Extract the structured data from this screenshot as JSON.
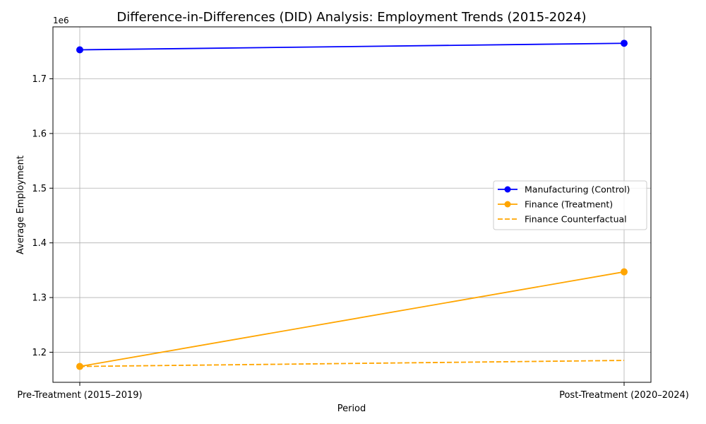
{
  "chart_data": {
    "type": "line",
    "title": "Difference-in-Differences (DID) Analysis: Employment Trends (2015-2024)",
    "xlabel": "Period",
    "ylabel": "Average Employment",
    "offset_label": "1e6",
    "categories": [
      "Pre-Treatment (2015–2019)",
      "Post-Treatment (2020–2024)"
    ],
    "ylim": [
      1145000,
      1795000
    ],
    "yticks": [
      1200000,
      1300000,
      1400000,
      1500000,
      1600000,
      1700000
    ],
    "ytick_labels": [
      "1.2",
      "1.3",
      "1.4",
      "1.5",
      "1.6",
      "1.7"
    ],
    "grid": true,
    "legend_position": "center-right",
    "series": [
      {
        "name": "Manufacturing (Control)",
        "values": [
          1753000,
          1765000
        ],
        "color": "#0000ff",
        "style": "solid",
        "marker": true
      },
      {
        "name": "Finance (Treatment)",
        "values": [
          1174000,
          1347000
        ],
        "color": "#ffa500",
        "style": "solid",
        "marker": true
      },
      {
        "name": "Finance Counterfactual",
        "values": [
          1174000,
          1185000
        ],
        "color": "#ffa500",
        "style": "dashed",
        "marker": false
      }
    ]
  }
}
